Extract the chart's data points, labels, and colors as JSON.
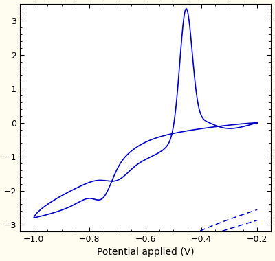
{
  "xlim": [
    -1.05,
    -0.15
  ],
  "ylim": [
    -3.2,
    3.5
  ],
  "xlabel": "Potential applied (V)",
  "xticks": [
    -1.0,
    -0.8,
    -0.6,
    -0.4,
    -0.2
  ],
  "yticks": [
    -3,
    -2,
    -1,
    0,
    1,
    2,
    3
  ],
  "line_color": "#0000CC",
  "background_color": "#FEFDF0",
  "plot_bg": "#FFFFFF",
  "xlabel_fontsize": 10,
  "tick_fontsize": 9
}
